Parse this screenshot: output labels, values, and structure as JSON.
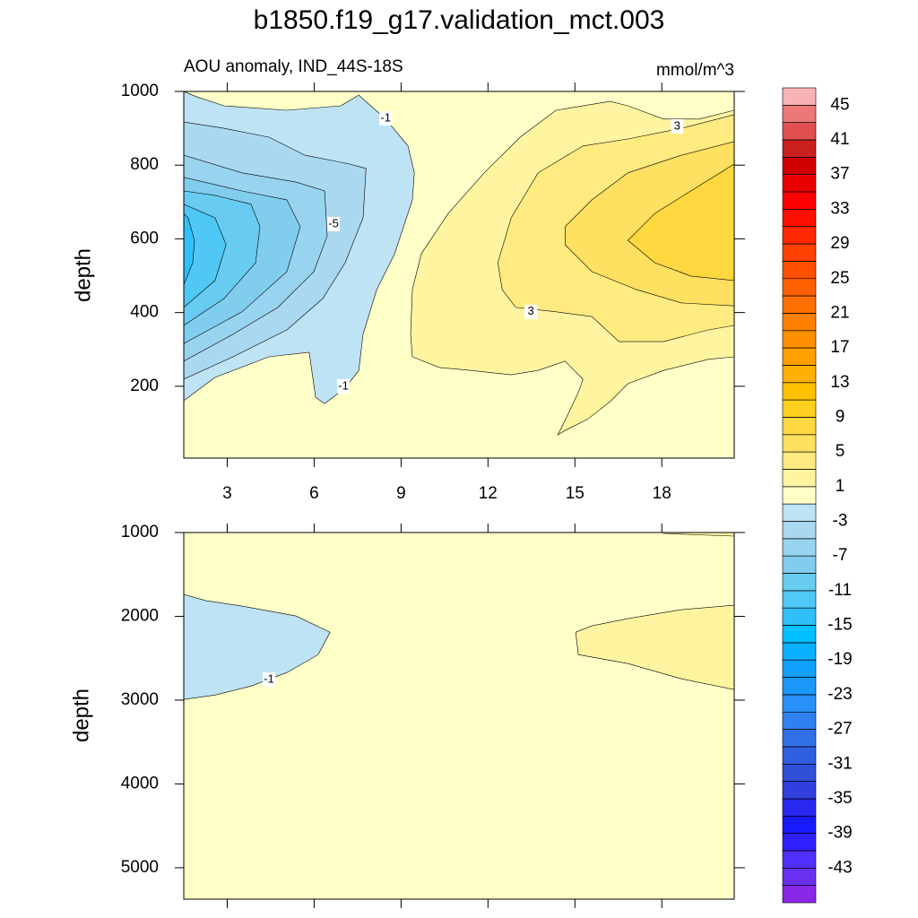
{
  "title": "b1850.f19_g17.validation_mct.003",
  "colorbar": {
    "levels": [
      -45,
      -43,
      -41,
      -39,
      -37,
      -35,
      -33,
      -31,
      -29,
      -27,
      -25,
      -23,
      -21,
      -19,
      -17,
      -15,
      -13,
      -11,
      -9,
      -7,
      -5,
      -3,
      -1,
      1,
      3,
      5,
      7,
      9,
      11,
      13,
      15,
      17,
      19,
      21,
      23,
      25,
      27,
      29,
      31,
      33,
      35,
      37,
      39,
      41,
      43,
      45
    ],
    "colors": [
      "#8a28e8",
      "#6a30f0",
      "#5030ff",
      "#3020ff",
      "#1a1aff",
      "#2828f0",
      "#3040e0",
      "#3050d8",
      "#3060e0",
      "#3070e8",
      "#3080f0",
      "#2890f8",
      "#1a98fa",
      "#10a0fc",
      "#08b0ff",
      "#00c0ff",
      "#30c0f8",
      "#50c8f5",
      "#68ccf2",
      "#80cdee",
      "#98d4f0",
      "#aad8f0",
      "#bee3f4",
      "#ffffc8",
      "#fff5a0",
      "#ffeb80",
      "#ffe060",
      "#ffd840",
      "#ffd020",
      "#ffc000",
      "#ffb000",
      "#ffa000",
      "#ff9000",
      "#ff8000",
      "#ff7000",
      "#ff6000",
      "#ff5000",
      "#ff4000",
      "#ff2800",
      "#ff1000",
      "#ff0000",
      "#e80000",
      "#d00000",
      "#cc2020",
      "#e05050",
      "#ec7878",
      "#f8b4b4"
    ],
    "ticks": [
      45,
      41,
      37,
      33,
      29,
      25,
      21,
      17,
      13,
      9,
      5,
      1,
      -3,
      -7,
      -11,
      -15,
      -19,
      -23,
      -27,
      -31,
      -35,
      -39,
      -43
    ]
  },
  "chart_data": [
    {
      "type": "contour",
      "subtitle": "AOU anomaly, IND_44S-18S",
      "units": "mmol/m^3",
      "ylabel": "depth",
      "xlim": [
        1.5,
        20.5
      ],
      "ylim": [
        1000,
        5
      ],
      "xticks": [
        3,
        6,
        9,
        12,
        15,
        18
      ],
      "yticks": [
        200,
        400,
        600,
        800,
        1000
      ],
      "background_level": -1,
      "regions": [
        {
          "level": -3,
          "points": [
            [
              1.5,
              161
            ],
            [
              2.58,
              224
            ],
            [
              4.44,
              280
            ],
            [
              5.83,
              292
            ],
            [
              6.05,
              170
            ],
            [
              6.36,
              153
            ],
            [
              7.07,
              195
            ],
            [
              7.54,
              243
            ],
            [
              7.69,
              341
            ],
            [
              8.16,
              462
            ],
            [
              8.78,
              560
            ],
            [
              9.39,
              706
            ],
            [
              9.46,
              779
            ],
            [
              9.24,
              852
            ],
            [
              8.47,
              925
            ],
            [
              7.54,
              990
            ],
            [
              6.92,
              961
            ],
            [
              5.06,
              949
            ],
            [
              2.89,
              961
            ],
            [
              1.96,
              985
            ],
            [
              1.5,
              1000
            ]
          ]
        },
        {
          "level": -5,
          "points": [
            [
              1.5,
              219
            ],
            [
              3.2,
              280
            ],
            [
              5.06,
              353
            ],
            [
              6.3,
              438
            ],
            [
              7.07,
              535
            ],
            [
              7.69,
              657
            ],
            [
              7.79,
              791
            ],
            [
              7.23,
              803
            ],
            [
              5.68,
              827
            ],
            [
              4.44,
              876
            ],
            [
              2.89,
              900
            ],
            [
              1.5,
              917
            ]
          ]
        },
        {
          "level": -7,
          "points": [
            [
              1.5,
              268
            ],
            [
              3.2,
              341
            ],
            [
              4.75,
              414
            ],
            [
              5.99,
              511
            ],
            [
              6.45,
              608
            ],
            [
              6.36,
              730
            ],
            [
              5.37,
              754
            ],
            [
              3.51,
              779
            ],
            [
              1.5,
              827
            ]
          ]
        },
        {
          "level": -9,
          "points": [
            [
              1.5,
              316
            ],
            [
              3.51,
              402
            ],
            [
              5.06,
              511
            ],
            [
              5.52,
              633
            ],
            [
              5.06,
              706
            ],
            [
              3.51,
              730
            ],
            [
              1.5,
              767
            ]
          ]
        },
        {
          "level": -11,
          "points": [
            [
              1.5,
              365
            ],
            [
              2.89,
              438
            ],
            [
              3.98,
              535
            ],
            [
              4.13,
              633
            ],
            [
              3.82,
              694
            ],
            [
              2.58,
              718
            ],
            [
              1.5,
              730
            ]
          ]
        },
        {
          "level": -13,
          "points": [
            [
              1.5,
              414
            ],
            [
              2.58,
              487
            ],
            [
              2.96,
              584
            ],
            [
              2.58,
              657
            ],
            [
              1.5,
              694
            ]
          ]
        },
        {
          "level": -15,
          "points": [
            [
              1.5,
              475
            ],
            [
              1.81,
              535
            ],
            [
              1.87,
              596
            ],
            [
              1.65,
              657
            ],
            [
              1.5,
              669
            ]
          ]
        },
        {
          "level": 1,
          "points": [
            [
              9.39,
              280
            ],
            [
              10.32,
              251
            ],
            [
              11.41,
              243
            ],
            [
              12.8,
              231
            ],
            [
              13.73,
              243
            ],
            [
              14.66,
              268
            ],
            [
              15.28,
              219
            ],
            [
              15.12,
              183
            ],
            [
              14.72,
              117
            ],
            [
              14.41,
              68
            ],
            [
              14.66,
              80
            ],
            [
              15.43,
              110
            ],
            [
              16.21,
              158
            ],
            [
              16.83,
              207
            ],
            [
              18.06,
              243
            ],
            [
              19.61,
              273
            ],
            [
              20.5,
              280
            ],
            [
              20.5,
              949
            ],
            [
              19.3,
              925
            ],
            [
              18.06,
              925
            ],
            [
              16.83,
              961
            ],
            [
              16.21,
              973
            ],
            [
              14.35,
              949
            ],
            [
              13.11,
              876
            ],
            [
              11.87,
              779
            ],
            [
              10.63,
              669
            ],
            [
              9.7,
              560
            ],
            [
              9.39,
              462
            ],
            [
              9.33,
              341
            ]
          ]
        },
        {
          "level": 3,
          "points": [
            [
              12.49,
              462
            ],
            [
              12.96,
              414
            ],
            [
              14.35,
              402
            ],
            [
              15.59,
              389
            ],
            [
              16.52,
              321
            ],
            [
              18.06,
              321
            ],
            [
              19.61,
              353
            ],
            [
              20.5,
              365
            ],
            [
              20.5,
              937
            ],
            [
              18.68,
              900
            ],
            [
              16.83,
              871
            ],
            [
              15.28,
              852
            ],
            [
              13.73,
              779
            ],
            [
              12.8,
              657
            ],
            [
              12.34,
              535
            ]
          ]
        },
        {
          "level": 5,
          "points": [
            [
              14.66,
              584
            ],
            [
              15.59,
              511
            ],
            [
              17.13,
              462
            ],
            [
              18.68,
              426
            ],
            [
              20.5,
              418
            ],
            [
              20.5,
              864
            ],
            [
              18.68,
              827
            ],
            [
              16.83,
              779
            ],
            [
              15.59,
              706
            ],
            [
              14.66,
              633
            ]
          ]
        },
        {
          "level": 7,
          "points": [
            [
              16.83,
              596
            ],
            [
              17.76,
              535
            ],
            [
              19.0,
              499
            ],
            [
              20.5,
              487
            ],
            [
              20.5,
              803
            ],
            [
              19.0,
              730
            ],
            [
              17.76,
              669
            ]
          ]
        }
      ],
      "contour_labels": [
        {
          "x": 7.01,
          "y": 200,
          "value": -1
        },
        {
          "x": 6.67,
          "y": 640,
          "value": -5
        },
        {
          "x": 8.47,
          "y": 927,
          "value": -1
        },
        {
          "x": 13.48,
          "y": 402,
          "value": 3
        },
        {
          "x": 18.53,
          "y": 905,
          "value": 3
        }
      ]
    },
    {
      "type": "contour",
      "ylabel": "depth",
      "xlim": [
        1.5,
        20.5
      ],
      "ylim": [
        1000,
        5375
      ],
      "xticks": [
        3,
        6,
        9,
        12,
        15,
        18
      ],
      "yticks": [
        1000,
        2000,
        3000,
        4000,
        5000
      ],
      "background_level": -1,
      "regions": [
        {
          "level": -3,
          "points": [
            [
              1.5,
              1739
            ],
            [
              2.27,
              1814
            ],
            [
              3.51,
              1878
            ],
            [
              5.37,
              1996
            ],
            [
              6.55,
              2189
            ],
            [
              6.14,
              2457
            ],
            [
              5.06,
              2671
            ],
            [
              3.82,
              2832
            ],
            [
              2.58,
              2939
            ],
            [
              1.5,
              2992
            ]
          ]
        },
        {
          "level": 1,
          "points": [
            [
              15.03,
              2189
            ],
            [
              15.59,
              2114
            ],
            [
              16.83,
              2028
            ],
            [
              18.68,
              1921
            ],
            [
              20.5,
              1868
            ],
            [
              20.5,
              2874
            ],
            [
              18.68,
              2746
            ],
            [
              16.83,
              2564
            ],
            [
              15.12,
              2457
            ]
          ]
        },
        {
          "level": 1,
          "points": [
            [
              18.06,
              1000
            ],
            [
              18.06,
              1011
            ],
            [
              19.61,
              1032
            ],
            [
              20.5,
              1043
            ],
            [
              20.5,
              1000
            ]
          ]
        }
      ],
      "contour_labels": [
        {
          "x": 4.44,
          "y": 2756,
          "value": -1
        }
      ]
    }
  ]
}
